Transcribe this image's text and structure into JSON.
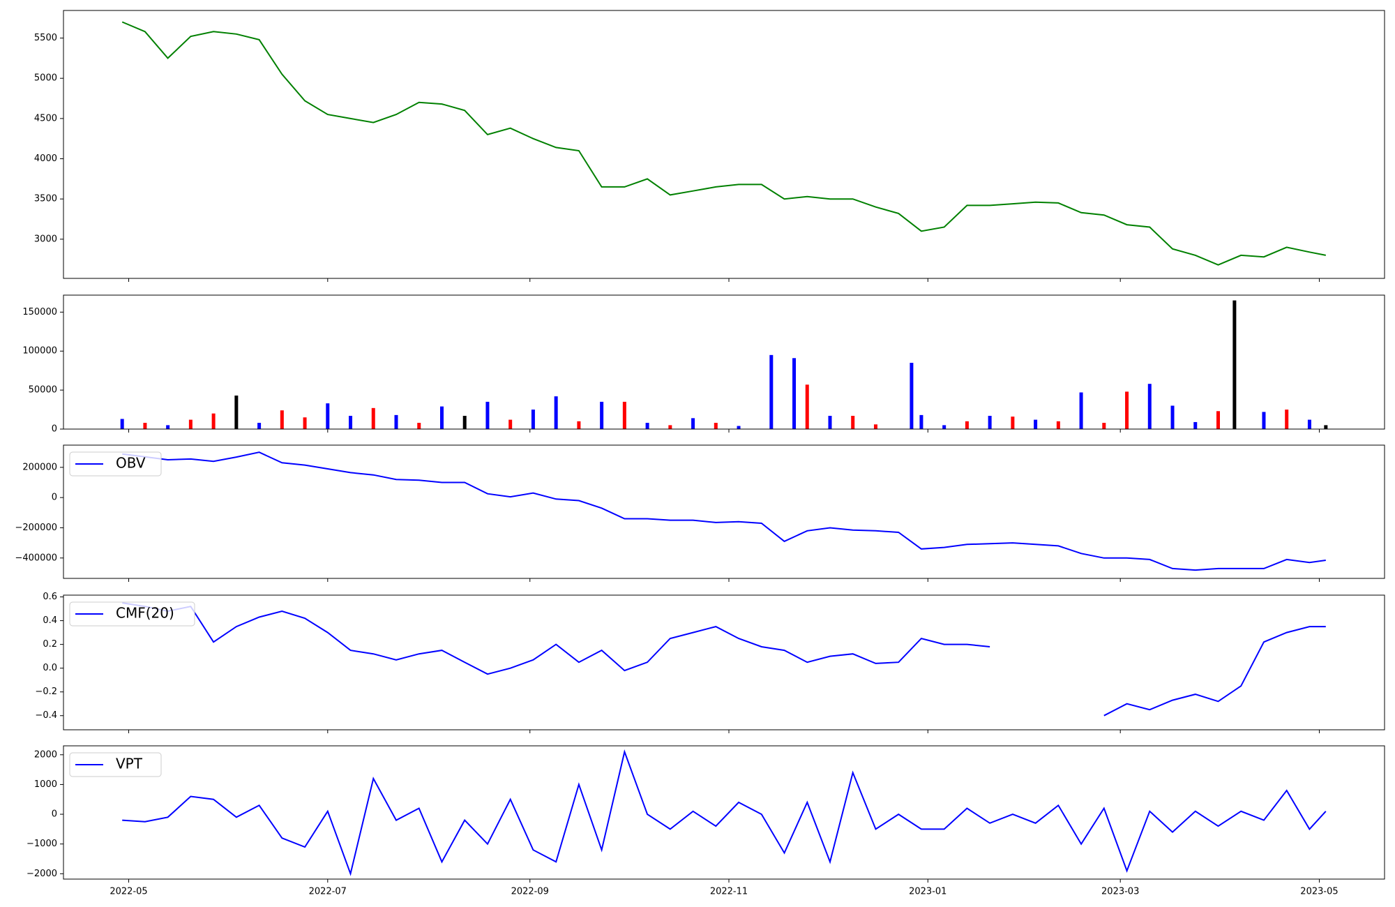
{
  "chart_data": [
    {
      "type": "line",
      "x": [
        "2022-04-29",
        "2022-05-06",
        "2022-05-13",
        "2022-05-20",
        "2022-05-27",
        "2022-06-03",
        "2022-06-10",
        "2022-06-17",
        "2022-06-24",
        "2022-07-01",
        "2022-07-08",
        "2022-07-15",
        "2022-07-22",
        "2022-07-29",
        "2022-08-05",
        "2022-08-12",
        "2022-08-19",
        "2022-08-26",
        "2022-09-02",
        "2022-09-09",
        "2022-09-16",
        "2022-09-23",
        "2022-09-30",
        "2022-10-07",
        "2022-10-14",
        "2022-10-21",
        "2022-10-28",
        "2022-11-04",
        "2022-11-11",
        "2022-11-18",
        "2022-11-25",
        "2022-12-02",
        "2022-12-09",
        "2022-12-16",
        "2022-12-23",
        "2022-12-30",
        "2023-01-06",
        "2023-01-13",
        "2023-01-20",
        "2023-01-27",
        "2023-02-03",
        "2023-02-10",
        "2023-02-17",
        "2023-02-24",
        "2023-03-03",
        "2023-03-10",
        "2023-03-17",
        "2023-03-24",
        "2023-03-31",
        "2023-04-07",
        "2023-04-14",
        "2023-04-21",
        "2023-04-28",
        "2023-05-03"
      ],
      "values": [
        5700,
        5580,
        5250,
        5520,
        5580,
        5550,
        5480,
        5050,
        4720,
        4550,
        4500,
        4450,
        4550,
        4700,
        4680,
        4600,
        4300,
        4380,
        4250,
        4140,
        4100,
        3650,
        3650,
        3750,
        3550,
        3600,
        3650,
        3680,
        3680,
        3500,
        3530,
        3500,
        3500,
        3400,
        3320,
        3100,
        3150,
        3420,
        3420,
        3440,
        3460,
        3450,
        3330,
        3300,
        3180,
        3150,
        2880,
        2800,
        2680,
        2800,
        2780,
        2900,
        2840,
        2800
      ],
      "color": "green",
      "xlim": [
        "2022-04-11",
        "2023-05-21"
      ],
      "ylim": [
        2513,
        5843
      ],
      "yticks": [
        3000,
        3500,
        4000,
        4500,
        5000,
        5500
      ]
    },
    {
      "type": "bar",
      "x": [
        "2022-04-29",
        "2022-05-06",
        "2022-05-13",
        "2022-05-20",
        "2022-05-27",
        "2022-06-03",
        "2022-06-10",
        "2022-06-17",
        "2022-06-24",
        "2022-07-01",
        "2022-07-08",
        "2022-07-15",
        "2022-07-22",
        "2022-07-29",
        "2022-08-05",
        "2022-08-12",
        "2022-08-19",
        "2022-08-26",
        "2022-09-02",
        "2022-09-09",
        "2022-09-16",
        "2022-09-23",
        "2022-09-30",
        "2022-10-07",
        "2022-10-14",
        "2022-10-21",
        "2022-10-28",
        "2022-11-04",
        "2022-11-14",
        "2022-11-21",
        "2022-11-25",
        "2022-12-02",
        "2022-12-09",
        "2022-12-16",
        "2022-12-27",
        "2022-12-30",
        "2023-01-06",
        "2023-01-13",
        "2023-01-20",
        "2023-01-27",
        "2023-02-03",
        "2023-02-10",
        "2023-02-17",
        "2023-02-24",
        "2023-03-03",
        "2023-03-10",
        "2023-03-17",
        "2023-03-24",
        "2023-03-31",
        "2023-04-05",
        "2023-04-14",
        "2023-04-21",
        "2023-04-28",
        "2023-05-03"
      ],
      "values": [
        13000,
        8000,
        5000,
        12000,
        20000,
        43000,
        8000,
        24000,
        15000,
        33000,
        17000,
        27000,
        18000,
        8000,
        29000,
        17000,
        35000,
        12000,
        25000,
        42000,
        10000,
        35000,
        35000,
        8000,
        5000,
        14000,
        8000,
        4000,
        95000,
        91000,
        57000,
        17000,
        17000,
        6000,
        85000,
        18000,
        5000,
        10000,
        17000,
        16000,
        12000,
        10000,
        47000,
        8000,
        48000,
        58000,
        30000,
        9000,
        23000,
        165000,
        22000,
        25000,
        12000,
        5000
      ],
      "colors": [
        "blue",
        "red",
        "blue",
        "red",
        "red",
        "black",
        "blue",
        "red",
        "red",
        "blue",
        "blue",
        "red",
        "blue",
        "red",
        "blue",
        "black",
        "blue",
        "red",
        "blue",
        "blue",
        "red",
        "blue",
        "red",
        "blue",
        "red",
        "blue",
        "red",
        "blue",
        "blue",
        "blue",
        "red",
        "blue",
        "red",
        "red",
        "blue",
        "blue",
        "blue",
        "red",
        "blue",
        "red",
        "blue",
        "red",
        "blue",
        "red",
        "red",
        "blue",
        "blue",
        "blue",
        "red",
        "black",
        "blue",
        "red",
        "blue",
        "black"
      ],
      "xlim": [
        "2022-04-11",
        "2023-05-21"
      ],
      "ylim": [
        0,
        171800
      ],
      "yticks": [
        0,
        50000,
        100000,
        150000
      ]
    },
    {
      "type": "line",
      "x": [
        "2022-04-29",
        "2022-05-06",
        "2022-05-13",
        "2022-05-20",
        "2022-05-27",
        "2022-06-03",
        "2022-06-10",
        "2022-06-17",
        "2022-06-24",
        "2022-07-01",
        "2022-07-08",
        "2022-07-15",
        "2022-07-22",
        "2022-07-29",
        "2022-08-05",
        "2022-08-12",
        "2022-08-19",
        "2022-08-26",
        "2022-09-02",
        "2022-09-09",
        "2022-09-16",
        "2022-09-23",
        "2022-09-30",
        "2022-10-07",
        "2022-10-14",
        "2022-10-21",
        "2022-10-28",
        "2022-11-04",
        "2022-11-11",
        "2022-11-18",
        "2022-11-25",
        "2022-12-02",
        "2022-12-09",
        "2022-12-16",
        "2022-12-23",
        "2022-12-30",
        "2023-01-06",
        "2023-01-13",
        "2023-01-20",
        "2023-01-27",
        "2023-02-03",
        "2023-02-10",
        "2023-02-17",
        "2023-02-24",
        "2023-03-03",
        "2023-03-10",
        "2023-03-17",
        "2023-03-24",
        "2023-03-31",
        "2023-04-07",
        "2023-04-14",
        "2023-04-21",
        "2023-04-28",
        "2023-05-03"
      ],
      "series": [
        {
          "name": "OBV",
          "color": "blue",
          "values": [
            288000,
            270000,
            250000,
            255000,
            240000,
            268000,
            300000,
            230000,
            215000,
            190000,
            165000,
            150000,
            120000,
            115000,
            100000,
            100000,
            25000,
            5000,
            30000,
            -10000,
            -20000,
            -70000,
            -140000,
            -140000,
            -150000,
            -150000,
            -165000,
            -160000,
            -170000,
            -290000,
            -220000,
            -200000,
            -215000,
            -220000,
            -230000,
            -340000,
            -330000,
            -310000,
            -305000,
            -300000,
            -310000,
            -320000,
            -370000,
            -400000,
            -400000,
            -410000,
            -470000,
            -480000,
            -470000,
            -470000,
            -470000,
            -410000,
            -430000,
            -415000
          ]
        }
      ],
      "legend": "upper left",
      "xlim": [
        "2022-04-11",
        "2023-05-21"
      ],
      "ylim": [
        -535000,
        347000
      ],
      "yticks": [
        {
          "value": -400000,
          "label": "−400000"
        },
        {
          "value": -200000,
          "label": "−200000"
        },
        0,
        200000
      ]
    },
    {
      "type": "line",
      "x": [
        "2022-04-29",
        "2022-05-06",
        "2022-05-13",
        "2022-05-20",
        "2022-05-27",
        "2022-06-03",
        "2022-06-10",
        "2022-06-17",
        "2022-06-24",
        "2022-07-01",
        "2022-07-08",
        "2022-07-15",
        "2022-07-22",
        "2022-07-29",
        "2022-08-05",
        "2022-08-12",
        "2022-08-19",
        "2022-08-26",
        "2022-09-02",
        "2022-09-09",
        "2022-09-16",
        "2022-09-23",
        "2022-09-30",
        "2022-10-07",
        "2022-10-14",
        "2022-10-21",
        "2022-10-28",
        "2022-11-04",
        "2022-11-11",
        "2022-11-18",
        "2022-11-25",
        "2022-12-02",
        "2022-12-09",
        "2022-12-16",
        "2022-12-23",
        "2022-12-30",
        "2023-01-06",
        "2023-01-13",
        "2023-01-20",
        "2023-01-27",
        "2023-02-03",
        "2023-02-10",
        "2023-02-17",
        "2023-02-24",
        "2023-03-03",
        "2023-03-10",
        "2023-03-17",
        "2023-03-24",
        "2023-03-31",
        "2023-04-07",
        "2023-04-14",
        "2023-04-21",
        "2023-04-28",
        "2023-05-03"
      ],
      "series": [
        {
          "name": "CMF(20)",
          "color": "blue",
          "values": [
            0.55,
            0.52,
            0.48,
            0.52,
            0.22,
            0.35,
            0.43,
            0.48,
            0.42,
            0.3,
            0.15,
            0.12,
            0.07,
            0.12,
            0.15,
            0.05,
            -0.05,
            0.0,
            0.07,
            0.2,
            0.05,
            0.15,
            -0.02,
            0.05,
            0.25,
            0.3,
            0.35,
            0.25,
            0.18,
            0.15,
            0.05,
            0.1,
            0.12,
            0.04,
            0.05,
            0.25,
            0.2,
            0.2,
            0.18,
            null,
            null,
            null,
            null,
            -0.4,
            -0.3,
            -0.35,
            -0.27,
            -0.22,
            -0.28,
            -0.15,
            0.22,
            0.3,
            0.35,
            0.35
          ]
        }
      ],
      "legend": "upper left",
      "xlim": [
        "2022-04-11",
        "2023-05-21"
      ],
      "ylim": [
        -0.519,
        0.615
      ],
      "yticks": [
        {
          "value": -0.4,
          "label": "−0.4"
        },
        {
          "value": -0.2,
          "label": "−0.2"
        },
        {
          "value": 0,
          "label": "0.0"
        },
        0.2,
        0.4,
        0.6
      ]
    },
    {
      "type": "line",
      "x": [
        "2022-04-29",
        "2022-05-06",
        "2022-05-13",
        "2022-05-20",
        "2022-05-27",
        "2022-06-03",
        "2022-06-10",
        "2022-06-17",
        "2022-06-24",
        "2022-07-01",
        "2022-07-08",
        "2022-07-15",
        "2022-07-22",
        "2022-07-29",
        "2022-08-05",
        "2022-08-12",
        "2022-08-19",
        "2022-08-26",
        "2022-09-02",
        "2022-09-09",
        "2022-09-16",
        "2022-09-23",
        "2022-09-30",
        "2022-10-07",
        "2022-10-14",
        "2022-10-21",
        "2022-10-28",
        "2022-11-04",
        "2022-11-11",
        "2022-11-18",
        "2022-11-25",
        "2022-12-02",
        "2022-12-09",
        "2022-12-16",
        "2022-12-23",
        "2022-12-30",
        "2023-01-06",
        "2023-01-13",
        "2023-01-20",
        "2023-01-27",
        "2023-02-03",
        "2023-02-10",
        "2023-02-17",
        "2023-02-24",
        "2023-03-03",
        "2023-03-10",
        "2023-03-17",
        "2023-03-24",
        "2023-03-31",
        "2023-04-07",
        "2023-04-14",
        "2023-04-21",
        "2023-04-28",
        "2023-05-03"
      ],
      "series": [
        {
          "name": "VPT",
          "color": "blue",
          "values": [
            -200,
            -250,
            -100,
            600,
            500,
            -100,
            300,
            -800,
            -1100,
            100,
            -2000,
            1200,
            -200,
            200,
            -1600,
            -200,
            -1000,
            500,
            -1200,
            -1600,
            1000,
            -1200,
            2100,
            0,
            -500,
            100,
            -400,
            400,
            0,
            -1300,
            400,
            -1600,
            1400,
            -500,
            0,
            -500,
            -500,
            200,
            -300,
            0,
            -300,
            300,
            -1000,
            200,
            -1900,
            100,
            -600,
            100,
            -400,
            100,
            -200,
            800,
            -500,
            100
          ]
        }
      ],
      "legend": "upper left",
      "xlim": [
        "2022-04-11",
        "2023-05-21"
      ],
      "ylim": [
        -2180,
        2300
      ],
      "yticks": [
        {
          "value": -2000,
          "label": "−2000"
        },
        {
          "value": -1000,
          "label": "−1000"
        },
        0,
        1000,
        2000
      ],
      "xticks": [
        "2022-05",
        "2022-07",
        "2022-09",
        "2022-11",
        "2023-01",
        "2023-03",
        "2023-05"
      ]
    }
  ]
}
